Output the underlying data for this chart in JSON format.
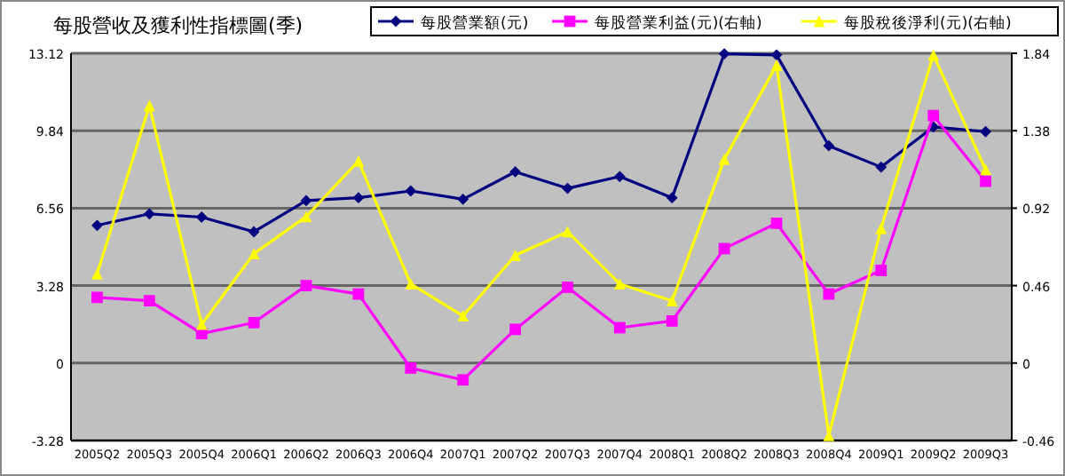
{
  "chart_data": {
    "type": "line",
    "title": "每股營收及獲利性指標圖(季)",
    "categories": [
      "2005Q2",
      "2005Q3",
      "2005Q4",
      "2006Q1",
      "2006Q2",
      "2006Q3",
      "2006Q4",
      "2007Q1",
      "2007Q2",
      "2007Q3",
      "2007Q4",
      "2008Q1",
      "2008Q2",
      "2008Q3",
      "2008Q4",
      "2009Q1",
      "2009Q2",
      "2009Q3"
    ],
    "series": [
      {
        "name": "每股營業額(元)",
        "color": "#000080",
        "marker": "diamond",
        "values": [
          5.83,
          6.32,
          6.18,
          5.56,
          6.88,
          7.0,
          7.29,
          6.94,
          8.1,
          7.4,
          7.9,
          7.0,
          13.1,
          13.05,
          9.2,
          8.3,
          10.0,
          9.8
        ]
      },
      {
        "name": "每股營業利益(元)(右軸)",
        "color": "#ff00ff",
        "marker": "square",
        "axis": "y2",
        "values": [
          0.39,
          0.37,
          0.175,
          0.24,
          0.46,
          0.41,
          -0.03,
          -0.1,
          0.2,
          0.45,
          0.21,
          0.25,
          0.68,
          0.83,
          0.41,
          0.55,
          1.47,
          1.08
        ]
      },
      {
        "name": "每股稅後淨利(元)(右軸)",
        "color": "#ffff00",
        "marker": "triangle",
        "axis": "y2",
        "values": [
          0.53,
          1.53,
          0.23,
          0.65,
          0.87,
          1.2,
          0.47,
          0.28,
          0.64,
          0.78,
          0.47,
          0.37,
          1.21,
          1.77,
          -0.43,
          0.8,
          1.83,
          1.15
        ]
      }
    ],
    "ylim": [
      -3.28,
      13.12
    ],
    "yticks": [
      -3.28,
      0,
      3.28,
      6.56,
      9.84,
      13.12
    ],
    "y2lim": [
      -0.46,
      1.84
    ],
    "y2ticks": [
      -0.46,
      0,
      0.46,
      0.92,
      1.38,
      1.84
    ],
    "grid": "y",
    "legend": "top right"
  }
}
